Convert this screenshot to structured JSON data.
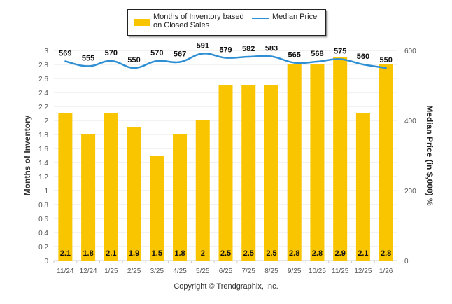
{
  "chart_data": {
    "type": "bar+line",
    "title": "",
    "categories": [
      "11/24",
      "12/24",
      "1/25",
      "2/25",
      "3/25",
      "4/25",
      "5/25",
      "6/25",
      "7/25",
      "8/25",
      "9/25",
      "10/25",
      "11/25",
      "12/25",
      "1/26"
    ],
    "series": [
      {
        "name": "Months of Inventory based on Closed Sales",
        "type": "bar",
        "axis": "left",
        "color": "#F9C400",
        "values": [
          2.1,
          1.8,
          2.1,
          1.9,
          1.5,
          1.8,
          2,
          2.5,
          2.5,
          2.5,
          2.8,
          2.8,
          2.9,
          2.1,
          2.8
        ],
        "labels": [
          "2.1",
          "1.8",
          "2.1",
          "1.9",
          "1.5",
          "1.8",
          "2",
          "2.5",
          "2.5",
          "2.5",
          "2.8",
          "2.8",
          "2.9",
          "2.1",
          "2.8"
        ]
      },
      {
        "name": "Median Price",
        "type": "line",
        "axis": "right",
        "color": "#2F8FD4",
        "values": [
          569,
          555,
          570,
          550,
          570,
          567,
          591,
          579,
          582,
          583,
          565,
          568,
          575,
          560,
          550
        ],
        "labels": [
          "569",
          "555",
          "570",
          "550",
          "570",
          "567",
          "591",
          "579",
          "582",
          "583",
          "565",
          "568",
          "575",
          "560",
          "550"
        ]
      }
    ],
    "ylabel_left": "Months of Inventory",
    "ylabel_right": "Median Price (in $,000)",
    "ylabel_right_suffix": "%",
    "ylim_left": [
      0,
      3
    ],
    "ylim_right": [
      0,
      600
    ],
    "yticks_left": [
      "0",
      "0.2",
      "0.4",
      "0.6",
      "0.8",
      "1",
      "1.2",
      "1.4",
      "1.6",
      "1.8",
      "2",
      "2.2",
      "2.4",
      "2.6",
      "2.8",
      "3"
    ],
    "yticks_left_values": [
      0,
      0.2,
      0.4,
      0.6,
      0.8,
      1,
      1.2,
      1.4,
      1.6,
      1.8,
      2,
      2.2,
      2.4,
      2.6,
      2.8,
      3
    ],
    "yticks_right": [
      "0",
      "200",
      "400",
      "600"
    ],
    "yticks_right_values": [
      0,
      200,
      400,
      600
    ],
    "grid": true,
    "legend_position": "top-center"
  },
  "legend": {
    "bar_label": "Months of Inventory based on Closed Sales",
    "bar_label_line1": "Months of Inventory based",
    "bar_label_line2": "on Closed Sales",
    "line_label": "Median Price"
  },
  "footer": {
    "copyright": "Copyright © Trendgraphix, Inc."
  }
}
